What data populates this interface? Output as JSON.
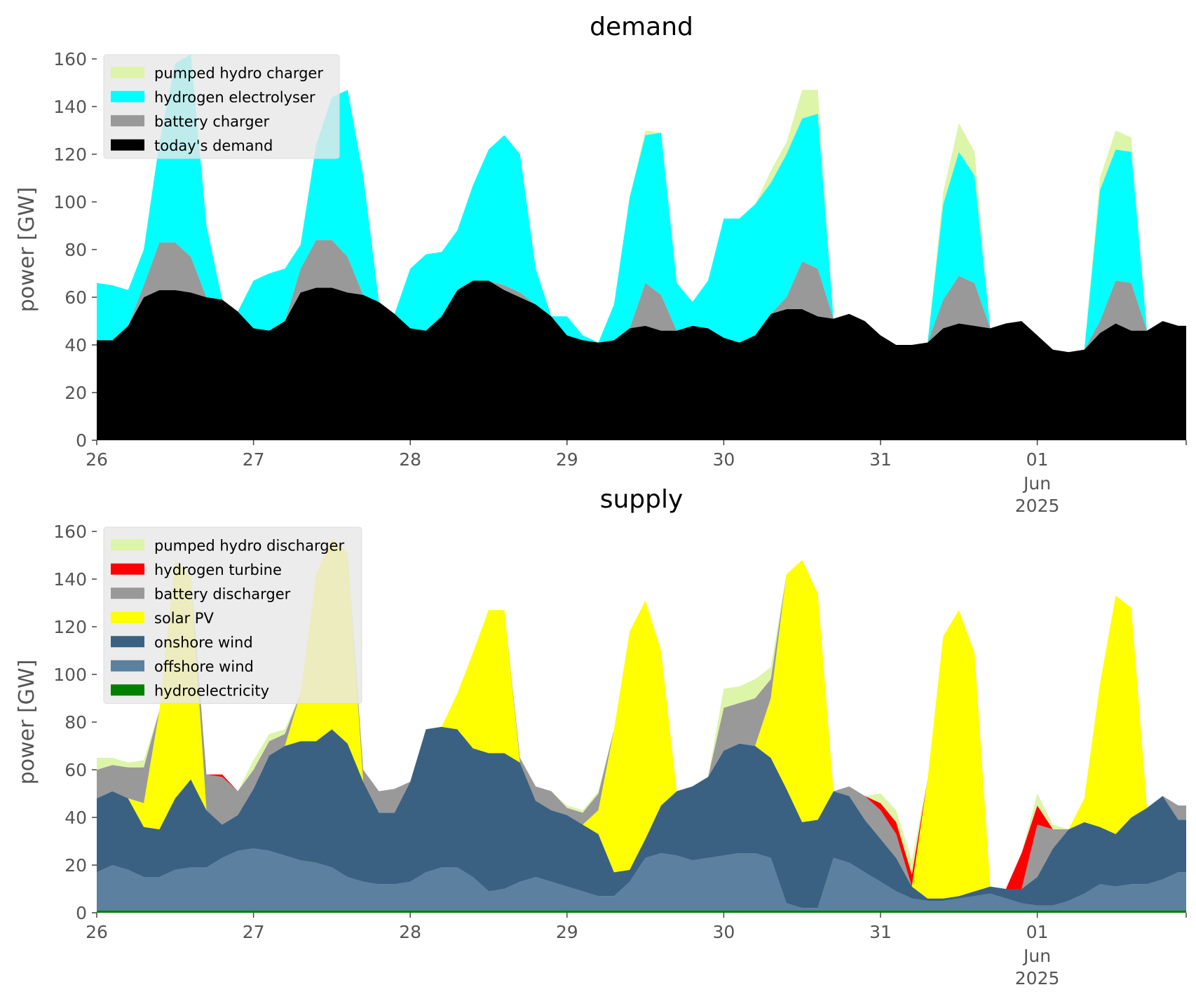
{
  "figure": {
    "colors": {
      "pumped_hydro": "#dcf5a8",
      "hydrogen_electrolyser": "#00ffff",
      "battery": "#999999",
      "demand": "#000000",
      "hydrogen_turbine": "#ff0000",
      "solar": "#ffff00",
      "onshore_wind": "#3b6182",
      "offshore_wind": "#5b80a0",
      "hydroelectricity": "#008000",
      "legend_bg": "#e8e8e8",
      "text": "#555555"
    }
  },
  "chart_data": [
    {
      "type": "area",
      "stacked": true,
      "title": "demand",
      "xlabel": "",
      "ylabel": "power [GW]",
      "ylim": [
        0,
        160
      ],
      "yticks": [
        0,
        20,
        40,
        60,
        80,
        100,
        120,
        140,
        160
      ],
      "xlim_days": [
        26,
        32.95
      ],
      "xticks": [
        {
          "day": 26,
          "label": "26"
        },
        {
          "day": 27,
          "label": "27"
        },
        {
          "day": 28,
          "label": "28"
        },
        {
          "day": 29,
          "label": "29"
        },
        {
          "day": 30,
          "label": "30"
        },
        {
          "day": 31,
          "label": "31"
        },
        {
          "day": 32,
          "label": "01",
          "sublabel": [
            "Jun",
            "2025"
          ]
        }
      ],
      "legend_position": "top-left",
      "x": [
        26.0,
        26.1,
        26.2,
        26.3,
        26.4,
        26.5,
        26.6,
        26.7,
        26.8,
        26.9,
        27.0,
        27.1,
        27.2,
        27.3,
        27.4,
        27.5,
        27.6,
        27.7,
        27.8,
        27.9,
        28.0,
        28.1,
        28.2,
        28.3,
        28.4,
        28.5,
        28.6,
        28.7,
        28.8,
        28.9,
        29.0,
        29.1,
        29.2,
        29.3,
        29.4,
        29.5,
        29.6,
        29.7,
        29.8,
        29.9,
        30.0,
        30.1,
        30.2,
        30.3,
        30.4,
        30.5,
        30.6,
        30.7,
        30.8,
        30.9,
        31.0,
        31.1,
        31.2,
        31.3,
        31.4,
        31.5,
        31.6,
        31.7,
        31.8,
        31.9,
        32.0,
        32.1,
        32.2,
        32.3,
        32.4,
        32.5,
        32.6,
        32.7,
        32.8,
        32.9
      ],
      "series": [
        {
          "name": "today's demand",
          "color_key": "demand",
          "values": [
            42,
            42,
            48,
            60,
            63,
            63,
            62,
            60,
            59,
            54,
            47,
            46,
            50,
            62,
            64,
            64,
            62,
            61,
            58,
            53,
            47,
            46,
            52,
            63,
            67,
            67,
            63,
            60,
            57,
            52,
            44,
            42,
            41,
            42,
            47,
            48,
            46,
            46,
            48,
            47,
            43,
            41,
            44,
            53,
            55,
            55,
            52,
            51,
            53,
            50,
            44,
            40,
            40,
            41,
            47,
            49,
            48,
            47,
            49,
            50,
            44,
            38,
            37,
            38,
            45,
            49,
            46,
            46,
            50,
            48
          ]
        },
        {
          "name": "battery charger",
          "color_key": "battery",
          "values": [
            0,
            0,
            0,
            5,
            20,
            20,
            15,
            0,
            0,
            0,
            0,
            0,
            0,
            10,
            20,
            20,
            15,
            0,
            0,
            0,
            0,
            0,
            0,
            0,
            0,
            0,
            2,
            2,
            0,
            0,
            0,
            0,
            0,
            0,
            0,
            18,
            15,
            0,
            0,
            0,
            0,
            0,
            0,
            0,
            5,
            20,
            20,
            0,
            0,
            0,
            0,
            0,
            0,
            0,
            12,
            20,
            18,
            0,
            0,
            0,
            0,
            0,
            0,
            0,
            5,
            18,
            20,
            0,
            0,
            0
          ]
        },
        {
          "name": "hydrogen electrolyser",
          "color_key": "hydrogen_electrolyser",
          "values": [
            24,
            23,
            15,
            15,
            42,
            75,
            85,
            30,
            0,
            0,
            20,
            24,
            22,
            10,
            40,
            60,
            70,
            50,
            0,
            0,
            25,
            32,
            27,
            25,
            40,
            55,
            63,
            58,
            15,
            0,
            8,
            2,
            0,
            15,
            55,
            62,
            68,
            20,
            10,
            20,
            50,
            52,
            55,
            55,
            60,
            60,
            65,
            0,
            0,
            0,
            0,
            0,
            0,
            0,
            40,
            52,
            45,
            0,
            0,
            0,
            0,
            0,
            0,
            0,
            55,
            55,
            55,
            0,
            0,
            0
          ]
        },
        {
          "name": "pumped hydro charger",
          "color_key": "pumped_hydro",
          "values": [
            0,
            0,
            0,
            0,
            0,
            0,
            0,
            0,
            0,
            0,
            0,
            0,
            0,
            0,
            0,
            0,
            0,
            0,
            0,
            0,
            0,
            0,
            0,
            0,
            0,
            0,
            0,
            0,
            0,
            0,
            0,
            0,
            0,
            0,
            0,
            2,
            0,
            0,
            0,
            0,
            0,
            0,
            0,
            5,
            5,
            12,
            10,
            0,
            0,
            0,
            0,
            0,
            0,
            0,
            5,
            12,
            10,
            0,
            0,
            0,
            0,
            0,
            0,
            0,
            5,
            8,
            6,
            0,
            0,
            0
          ]
        }
      ]
    },
    {
      "type": "area",
      "stacked": true,
      "title": "supply",
      "xlabel": "",
      "ylabel": "power [GW]",
      "ylim": [
        0,
        160
      ],
      "yticks": [
        0,
        20,
        40,
        60,
        80,
        100,
        120,
        140,
        160
      ],
      "xlim_days": [
        26,
        32.95
      ],
      "xticks": [
        {
          "day": 26,
          "label": "26"
        },
        {
          "day": 27,
          "label": "27"
        },
        {
          "day": 28,
          "label": "28"
        },
        {
          "day": 29,
          "label": "29"
        },
        {
          "day": 30,
          "label": "30"
        },
        {
          "day": 31,
          "label": "31"
        },
        {
          "day": 32,
          "label": "01",
          "sublabel": [
            "Jun",
            "2025"
          ]
        }
      ],
      "legend_position": "top-left",
      "x": [
        26.0,
        26.1,
        26.2,
        26.3,
        26.4,
        26.5,
        26.6,
        26.7,
        26.8,
        26.9,
        27.0,
        27.1,
        27.2,
        27.3,
        27.4,
        27.5,
        27.6,
        27.7,
        27.8,
        27.9,
        28.0,
        28.1,
        28.2,
        28.3,
        28.4,
        28.5,
        28.6,
        28.7,
        28.8,
        28.9,
        29.0,
        29.1,
        29.2,
        29.3,
        29.4,
        29.5,
        29.6,
        29.7,
        29.8,
        29.9,
        30.0,
        30.1,
        30.2,
        30.3,
        30.4,
        30.5,
        30.6,
        30.7,
        30.8,
        30.9,
        31.0,
        31.1,
        31.2,
        31.3,
        31.4,
        31.5,
        31.6,
        31.7,
        31.8,
        31.9,
        32.0,
        32.1,
        32.2,
        32.3,
        32.4,
        32.5,
        32.6,
        32.7,
        32.8,
        32.9
      ],
      "series": [
        {
          "name": "hydroelectricity",
          "color_key": "hydroelectricity",
          "values": [
            1,
            1,
            1,
            1,
            1,
            1,
            1,
            1,
            1,
            1,
            1,
            1,
            1,
            1,
            1,
            1,
            1,
            1,
            1,
            1,
            1,
            1,
            1,
            1,
            1,
            1,
            1,
            1,
            1,
            1,
            1,
            1,
            1,
            1,
            1,
            1,
            1,
            1,
            1,
            1,
            1,
            1,
            1,
            1,
            1,
            1,
            1,
            1,
            1,
            1,
            1,
            1,
            1,
            1,
            1,
            1,
            1,
            1,
            1,
            1,
            1,
            1,
            1,
            1,
            1,
            1,
            1,
            1,
            1,
            1
          ]
        },
        {
          "name": "offshore wind",
          "color_key": "offshore_wind",
          "values": [
            16,
            19,
            17,
            14,
            14,
            17,
            18,
            18,
            22,
            25,
            26,
            25,
            23,
            21,
            20,
            18,
            14,
            12,
            11,
            11,
            12,
            16,
            18,
            18,
            14,
            8,
            9,
            12,
            14,
            12,
            10,
            8,
            6,
            6,
            12,
            22,
            24,
            23,
            21,
            22,
            23,
            24,
            24,
            22,
            3,
            1,
            1,
            22,
            20,
            16,
            12,
            8,
            5,
            4,
            4,
            5,
            6,
            7,
            5,
            3,
            2,
            2,
            4,
            7,
            11,
            10,
            11,
            11,
            13,
            16
          ]
        },
        {
          "name": "onshore wind",
          "color_key": "onshore_wind",
          "values": [
            31,
            31,
            30,
            21,
            20,
            30,
            37,
            24,
            14,
            15,
            25,
            40,
            46,
            50,
            51,
            58,
            56,
            42,
            30,
            30,
            42,
            60,
            59,
            58,
            54,
            58,
            57,
            50,
            32,
            30,
            30,
            28,
            26,
            10,
            5,
            8,
            20,
            27,
            31,
            34,
            44,
            46,
            45,
            42,
            48,
            36,
            37,
            28,
            28,
            22,
            18,
            14,
            5,
            1,
            1,
            1,
            2,
            3,
            4,
            6,
            12,
            24,
            30,
            30,
            24,
            22,
            28,
            32,
            35,
            22
          ]
        },
        {
          "name": "solar PV",
          "color_key": "solar",
          "values": [
            0,
            0,
            0,
            10,
            50,
            100,
            85,
            0,
            0,
            0,
            0,
            0,
            0,
            20,
            70,
            80,
            80,
            0,
            0,
            0,
            0,
            0,
            0,
            15,
            40,
            60,
            60,
            0,
            0,
            0,
            0,
            0,
            10,
            60,
            100,
            100,
            65,
            0,
            0,
            0,
            0,
            0,
            0,
            25,
            90,
            110,
            95,
            0,
            0,
            0,
            0,
            0,
            0,
            50,
            110,
            120,
            100,
            0,
            0,
            0,
            0,
            0,
            0,
            10,
            60,
            100,
            88,
            0,
            0,
            0
          ]
        },
        {
          "name": "battery discharger",
          "color_key": "battery",
          "values": [
            12,
            11,
            13,
            15,
            0,
            0,
            0,
            15,
            20,
            10,
            8,
            6,
            5,
            0,
            0,
            0,
            0,
            5,
            9,
            10,
            0,
            0,
            0,
            0,
            0,
            0,
            0,
            2,
            6,
            8,
            3,
            5,
            7,
            0,
            0,
            0,
            0,
            0,
            0,
            0,
            18,
            17,
            20,
            8,
            0,
            0,
            0,
            0,
            4,
            10,
            12,
            10,
            0,
            0,
            0,
            0,
            0,
            0,
            0,
            0,
            22,
            8,
            0,
            0,
            0,
            0,
            0,
            0,
            0,
            6
          ]
        },
        {
          "name": "hydrogen turbine",
          "color_key": "hydrogen_turbine",
          "values": [
            0,
            0,
            0,
            0,
            0,
            0,
            0,
            0,
            1,
            0,
            0,
            0,
            0,
            0,
            0,
            0,
            0,
            0,
            0,
            0,
            0,
            0,
            0,
            0,
            0,
            0,
            0,
            0,
            0,
            0,
            0,
            0,
            0,
            0,
            0,
            0,
            0,
            0,
            0,
            0,
            0,
            0,
            0,
            0,
            0,
            0,
            0,
            0,
            0,
            0,
            3,
            5,
            5,
            0,
            0,
            0,
            0,
            0,
            0,
            15,
            8,
            0,
            0,
            0,
            0,
            0,
            0,
            0,
            0,
            0
          ]
        },
        {
          "name": "pumped hydro discharger",
          "color_key": "pumped_hydro",
          "values": [
            5,
            3,
            2,
            3,
            0,
            0,
            0,
            0,
            0,
            0,
            4,
            3,
            2,
            0,
            0,
            0,
            0,
            0,
            0,
            0,
            0,
            0,
            0,
            0,
            0,
            0,
            0,
            0,
            0,
            0,
            1,
            1,
            1,
            0,
            0,
            0,
            0,
            0,
            0,
            0,
            8,
            7,
            8,
            5,
            0,
            0,
            0,
            0,
            0,
            0,
            4,
            5,
            6,
            0,
            0,
            0,
            0,
            0,
            0,
            0,
            5,
            2,
            0,
            0,
            0,
            0,
            0,
            0,
            0,
            0
          ]
        }
      ]
    }
  ],
  "legends": [
    {
      "items": [
        {
          "label": "pumped hydro charger",
          "color_key": "pumped_hydro"
        },
        {
          "label": "hydrogen electrolyser",
          "color_key": "hydrogen_electrolyser"
        },
        {
          "label": "battery charger",
          "color_key": "battery"
        },
        {
          "label": "today's demand",
          "color_key": "demand"
        }
      ]
    },
    {
      "items": [
        {
          "label": "pumped hydro discharger",
          "color_key": "pumped_hydro"
        },
        {
          "label": "hydrogen turbine",
          "color_key": "hydrogen_turbine"
        },
        {
          "label": "battery discharger",
          "color_key": "battery"
        },
        {
          "label": "solar PV",
          "color_key": "solar"
        },
        {
          "label": "onshore wind",
          "color_key": "onshore_wind"
        },
        {
          "label": "offshore wind",
          "color_key": "offshore_wind"
        },
        {
          "label": "hydroelectricity",
          "color_key": "hydroelectricity"
        }
      ]
    }
  ]
}
